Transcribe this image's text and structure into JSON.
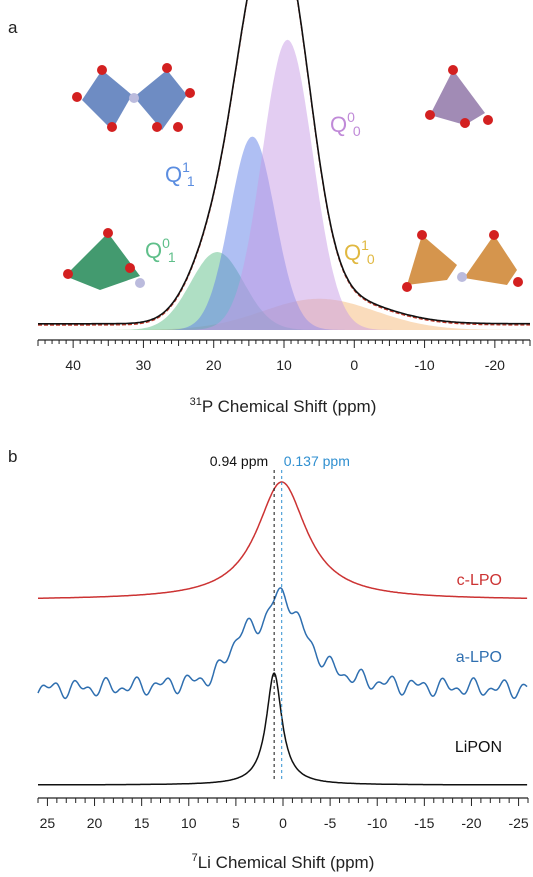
{
  "chart_data": [
    {
      "type": "line",
      "panel": "a",
      "xlabel_pre": "31",
      "xlabel": "P Chemical Shift (ppm)",
      "xlim": [
        45,
        -25
      ],
      "xticks": [
        40,
        30,
        20,
        10,
        0,
        -10,
        -20
      ],
      "xtick_labels": [
        "40",
        "30",
        "20",
        "10",
        "0",
        "-10",
        "-20"
      ],
      "components": [
        {
          "id": "Q1_0",
          "label": "Q",
          "sup": "1",
          "sub": "0",
          "color": "#f5b97a",
          "center": 5,
          "width": 8,
          "height": 0.1
        },
        {
          "id": "Q0_1",
          "label": "Q",
          "sup": "0",
          "sub": "1",
          "color": "#5fbf8a",
          "center": 19.5,
          "width": 3.8,
          "height": 0.25
        },
        {
          "id": "Q1_1",
          "label": "Q",
          "sup": "1",
          "sub": "1",
          "color": "#5f7fe8",
          "center": 14.5,
          "width": 3.2,
          "height": 0.62
        },
        {
          "id": "Q0_0",
          "label": "Q",
          "sup": "0",
          "sub": "0",
          "color": "#c79be6",
          "center": 9.5,
          "width": 3.6,
          "height": 0.93
        }
      ],
      "label_colors": {
        "Q1_1": "#5b8de0",
        "Q0_0": "#c08ad8",
        "Q0_1": "#5fbf8a",
        "Q1_0": "#e0b840"
      },
      "envelope_color": "#111111",
      "fit_color": "#c0392b"
    },
    {
      "type": "line",
      "panel": "b",
      "xlabel_pre": "7",
      "xlabel": "Li Chemical Shift (ppm)",
      "xlim": [
        26,
        -26
      ],
      "xticks": [
        25,
        20,
        15,
        10,
        5,
        0,
        -5,
        -10,
        -15,
        -20,
        -25
      ],
      "xtick_labels": [
        "25",
        "20",
        "15",
        "10",
        "5",
        "0",
        "-5",
        "-10",
        "-15",
        "-20",
        "-25"
      ],
      "series": [
        {
          "name": "c-LPO",
          "color": "#cc3333",
          "center": 0.137,
          "width": 3.2,
          "height": 1.0
        },
        {
          "name": "a-LPO",
          "color": "#2f6fb0",
          "center": 0.137,
          "width": 3.0,
          "height": 1.0
        },
        {
          "name": "LiPON",
          "color": "#111111",
          "center": 0.94,
          "width": 1.0,
          "height": 1.0
        }
      ],
      "reference_lines": [
        {
          "value": 0.94,
          "label": "0.94 ppm",
          "color": "#111111"
        },
        {
          "value": 0.137,
          "label": "0.137 ppm",
          "color": "#2f8fd0"
        }
      ]
    }
  ],
  "panel_a_label": "a",
  "panel_b_label": "b"
}
